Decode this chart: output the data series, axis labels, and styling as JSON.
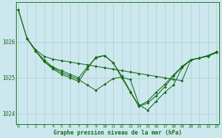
{
  "bg_color": "#cce8ee",
  "line_color": "#1a6b1a",
  "grid_color": "#aacccc",
  "xlabel": "Graphe pression niveau de la mer (hPa)",
  "yticks": [
    1024,
    1025,
    1026
  ],
  "xticks": [
    0,
    1,
    2,
    3,
    4,
    5,
    6,
    7,
    8,
    9,
    10,
    11,
    12,
    13,
    14,
    15,
    16,
    17,
    18,
    19,
    20,
    21,
    22,
    23
  ],
  "ylim": [
    1023.7,
    1027.1
  ],
  "xlim": [
    -0.3,
    23.3
  ],
  "line1_x": [
    0,
    1,
    2,
    3,
    4,
    5,
    6,
    7,
    8,
    9,
    10,
    11,
    12,
    13,
    14,
    15,
    16,
    17,
    18,
    19,
    20,
    21,
    22,
    23
  ],
  "line1_y": [
    1026.9,
    1026.1,
    1025.75,
    1025.5,
    1025.3,
    1025.2,
    1025.1,
    1025.0,
    1025.3,
    1025.55,
    1025.62,
    1025.42,
    1025.0,
    1024.6,
    1024.2,
    1024.3,
    1024.5,
    1024.75,
    1025.05,
    1025.3,
    1025.5,
    1025.55,
    1025.6,
    1025.7
  ],
  "line2_x": [
    0,
    1,
    2,
    3,
    4,
    5,
    6,
    7,
    8,
    9,
    10,
    11,
    12,
    13,
    14,
    15,
    16,
    17,
    18,
    19,
    20,
    21,
    22,
    23
  ],
  "line2_y": [
    1026.9,
    1026.1,
    1025.78,
    1025.6,
    1025.52,
    1025.48,
    1025.44,
    1025.4,
    1025.36,
    1025.32,
    1025.28,
    1025.24,
    1025.2,
    1025.16,
    1025.12,
    1025.08,
    1025.04,
    1025.0,
    1024.96,
    1024.92,
    1025.5,
    1025.55,
    1025.62,
    1025.72
  ],
  "line3_x": [
    1,
    2,
    3,
    4,
    5,
    6,
    7,
    8,
    9,
    10,
    11,
    12,
    13,
    14,
    15,
    16,
    17,
    18,
    19,
    20,
    21,
    22,
    23
  ],
  "line3_y": [
    1026.1,
    1025.75,
    1025.45,
    1025.25,
    1025.1,
    1025.0,
    1024.9,
    1025.25,
    1025.58,
    1025.62,
    1025.42,
    1025.05,
    1024.62,
    1024.22,
    1024.35,
    1024.6,
    1024.82,
    1025.08,
    1025.32,
    1025.5,
    1025.55,
    1025.62,
    1025.72
  ],
  "line4_x": [
    1,
    2,
    3,
    4,
    5,
    6,
    7,
    8,
    9,
    10,
    11,
    12,
    13,
    14,
    15,
    16,
    17,
    18,
    19,
    20,
    21,
    22,
    23
  ],
  "line4_y": [
    1026.1,
    1025.75,
    1025.45,
    1025.28,
    1025.15,
    1025.05,
    1024.95,
    1024.8,
    1024.65,
    1024.82,
    1024.98,
    1025.02,
    1024.95,
    1024.25,
    1024.1,
    1024.35,
    1024.6,
    1024.8,
    1025.28,
    1025.5,
    1025.55,
    1025.62,
    1025.72
  ]
}
